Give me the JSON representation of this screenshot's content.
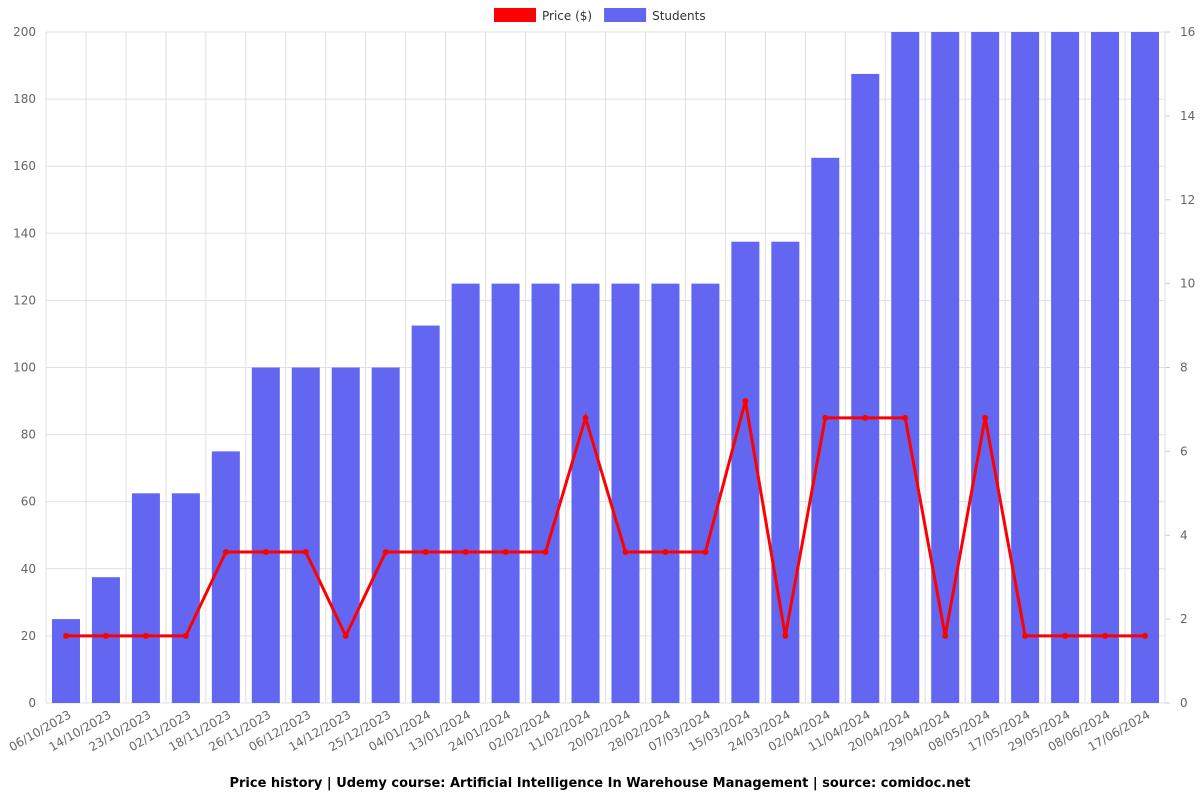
{
  "chart_data": {
    "type": "bar_line",
    "title": "Price history | Udemy course: Artificial Intelligence In Warehouse Management | source: comidoc.net",
    "categories": [
      "06/10/2023",
      "14/10/2023",
      "23/10/2023",
      "02/11/2023",
      "18/11/2023",
      "26/11/2023",
      "06/12/2023",
      "14/12/2023",
      "25/12/2023",
      "04/01/2024",
      "13/01/2024",
      "24/01/2024",
      "02/02/2024",
      "11/02/2024",
      "20/02/2024",
      "28/02/2024",
      "07/03/2024",
      "15/03/2024",
      "24/03/2024",
      "02/04/2024",
      "11/04/2024",
      "20/04/2024",
      "29/04/2024",
      "08/05/2024",
      "17/05/2024",
      "29/05/2024",
      "08/06/2024",
      "17/06/2024"
    ],
    "series": [
      {
        "name": "Price ($)",
        "type": "line",
        "color": "#ff0000",
        "values": [
          20,
          20,
          20,
          20,
          45,
          45,
          45,
          20,
          45,
          45,
          45,
          45,
          45,
          85,
          45,
          45,
          45,
          90,
          20,
          85,
          85,
          85,
          20,
          85,
          20,
          20,
          20,
          20
        ]
      },
      {
        "name": "Students",
        "type": "bar",
        "color": "#6366f1",
        "axis": "y2",
        "values": [
          2,
          3,
          5,
          5,
          6,
          8,
          8,
          8,
          8,
          9,
          10,
          10,
          10,
          10,
          10,
          10,
          10,
          11,
          11,
          13,
          15,
          16,
          16,
          16,
          16,
          16,
          16,
          16
        ]
      }
    ],
    "ylim": [
      0,
      200
    ],
    "yticks": [
      0,
      20,
      40,
      60,
      80,
      100,
      120,
      140,
      160,
      180,
      200
    ],
    "y2lim": [
      0,
      16
    ],
    "y2ticks": [
      0,
      2,
      4,
      6,
      8,
      10,
      12,
      14,
      16
    ],
    "grid": true,
    "legend": "top"
  }
}
